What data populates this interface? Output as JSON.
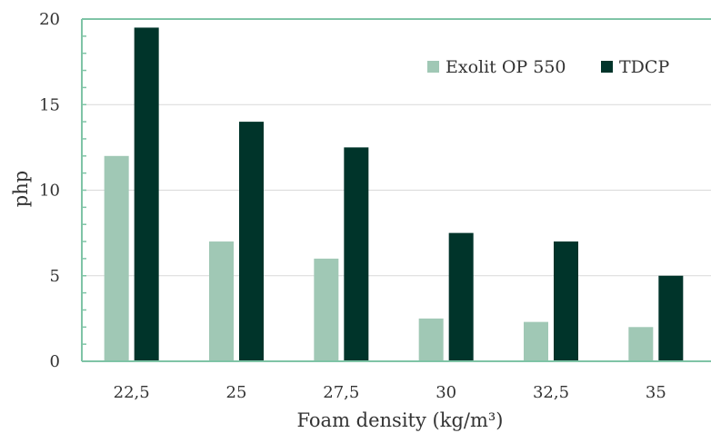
{
  "chart_data": {
    "type": "bar",
    "title": "",
    "xlabel": "Foam density (kg/m³)",
    "ylabel": "php",
    "categories": [
      "22,5",
      "25",
      "27,5",
      "30",
      "32,5",
      "35"
    ],
    "series": [
      {
        "name": "Exolit OP 550",
        "color": "#a0c8b5",
        "values": [
          12,
          7,
          6,
          2.5,
          2.3,
          2
        ]
      },
      {
        "name": "TDCP",
        "color": "#00342a",
        "values": [
          19.5,
          14,
          12.5,
          7.5,
          7,
          5
        ]
      }
    ],
    "ylim": [
      0,
      20
    ],
    "yticks": [
      "0",
      "5",
      "10",
      "15",
      "20"
    ],
    "grid": true,
    "legend_position": "top-right",
    "axis_color": "#7fc4a6",
    "grid_color": "#d9d9d9"
  }
}
